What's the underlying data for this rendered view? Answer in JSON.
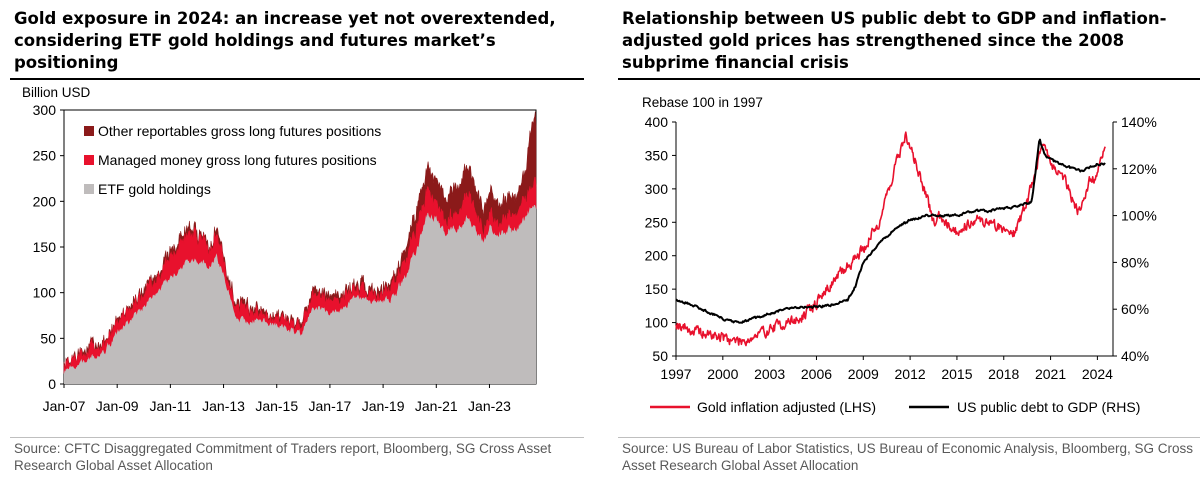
{
  "left": {
    "title_lines": [
      "Gold exposure in 2024: an increase yet not overextended,",
      "considering ETF gold holdings and futures market’s",
      "positioning"
    ],
    "source_lines": [
      "Source: CFTC Disaggregated Commitment of Traders report, Bloomberg, SG Cross Asset",
      "Research Global Asset Allocation"
    ]
  },
  "right": {
    "title_lines": [
      "Relationship between US public debt to GDP and inflation-",
      "adjusted gold prices has strengthened since the 2008",
      "subprime financial crisis"
    ],
    "source_lines": [
      "Source: US Bureau of Labor Statistics, US Bureau of Economic Analysis, Bloomberg, SG Cross",
      "Asset Research Global Asset Allocation"
    ]
  },
  "chart_data": [
    {
      "type": "area",
      "stacked": true,
      "ylabel": "Billion USD",
      "ylim": [
        0,
        300
      ],
      "yticks": [
        0,
        50,
        100,
        150,
        200,
        250,
        300
      ],
      "xlim": [
        2007.0,
        2024.75
      ],
      "xtick_labels": [
        "Jan-07",
        "Jan-09",
        "Jan-11",
        "Jan-13",
        "Jan-15",
        "Jan-17",
        "Jan-19",
        "Jan-21",
        "Jan-23"
      ],
      "xtick_years": [
        2007,
        2009,
        2011,
        2013,
        2015,
        2017,
        2019,
        2021,
        2023
      ],
      "grid": false,
      "legend_position": "top-left",
      "colors": {
        "etf": "#bfbcbc",
        "managed": "#e8112d",
        "other": "#8b1a1a"
      },
      "x": [
        2007.0,
        2007.5,
        2008.0,
        2008.5,
        2009.0,
        2009.5,
        2010.0,
        2010.5,
        2011.0,
        2011.5,
        2011.75,
        2012.0,
        2012.5,
        2012.75,
        2013.0,
        2013.25,
        2013.5,
        2014.0,
        2014.5,
        2015.0,
        2015.5,
        2015.9,
        2016.3,
        2016.6,
        2017.0,
        2017.5,
        2018.0,
        2018.5,
        2019.0,
        2019.5,
        2020.0,
        2020.3,
        2020.6,
        2021.0,
        2021.3,
        2021.6,
        2022.0,
        2022.25,
        2022.5,
        2022.8,
        2023.0,
        2023.5,
        2024.0,
        2024.3,
        2024.6
      ],
      "series": [
        {
          "name": "ETF gold holdings",
          "values": [
            13,
            20,
            28,
            35,
            55,
            70,
            85,
            100,
            115,
            130,
            135,
            135,
            130,
            140,
            120,
            95,
            70,
            70,
            70,
            65,
            60,
            55,
            80,
            85,
            75,
            85,
            95,
            90,
            90,
            100,
            130,
            150,
            185,
            180,
            165,
            170,
            175,
            185,
            165,
            155,
            170,
            165,
            170,
            180,
            195
          ]
        },
        {
          "name": "Managed money gross long futures positions",
          "values": [
            5,
            8,
            10,
            8,
            10,
            12,
            15,
            18,
            22,
            28,
            30,
            25,
            20,
            25,
            15,
            12,
            10,
            12,
            10,
            8,
            8,
            10,
            15,
            15,
            12,
            12,
            10,
            8,
            10,
            15,
            20,
            25,
            25,
            20,
            15,
            15,
            20,
            30,
            15,
            10,
            15,
            15,
            15,
            20,
            25
          ]
        },
        {
          "name": "Other reportables gross long futures positions",
          "values": [
            2,
            3,
            4,
            3,
            3,
            4,
            5,
            5,
            6,
            7,
            7,
            6,
            5,
            6,
            5,
            4,
            4,
            4,
            4,
            3,
            3,
            4,
            6,
            6,
            5,
            5,
            5,
            5,
            5,
            7,
            15,
            20,
            25,
            25,
            25,
            30,
            30,
            30,
            25,
            25,
            25,
            20,
            20,
            25,
            70
          ]
        }
      ]
    },
    {
      "type": "line",
      "ylabel": "Rebase 100 in 1997",
      "ylim": [
        50,
        400
      ],
      "yticks": [
        50,
        100,
        150,
        200,
        250,
        300,
        350,
        400
      ],
      "y2lim": [
        40,
        140
      ],
      "y2ticks": [
        40,
        60,
        80,
        100,
        120,
        140
      ],
      "y2tick_labels": [
        "40%",
        "60%",
        "80%",
        "100%",
        "120%",
        "140%"
      ],
      "xlim": [
        1997,
        2025
      ],
      "xticks": [
        1997,
        2000,
        2003,
        2006,
        2009,
        2012,
        2015,
        2018,
        2021,
        2024
      ],
      "grid": false,
      "legend_position": "bottom",
      "series": [
        {
          "name": "Gold inflation adjusted (LHS)",
          "axis": "left",
          "color": "#e8112d",
          "x": [
            1997,
            1998,
            1999,
            2000,
            2001,
            2002,
            2003,
            2004,
            2005,
            2006,
            2007,
            2008,
            2009,
            2010,
            2011,
            2011.7,
            2012.5,
            2013.5,
            2014,
            2015,
            2016,
            2017,
            2018,
            2018.7,
            2019.5,
            2020.5,
            2021,
            2022,
            2022.8,
            2023.5,
            2024,
            2024.5
          ],
          "y": [
            100,
            88,
            82,
            78,
            72,
            78,
            90,
            100,
            105,
            130,
            160,
            185,
            210,
            250,
            330,
            380,
            330,
            250,
            260,
            235,
            255,
            250,
            240,
            235,
            280,
            370,
            340,
            310,
            265,
            310,
            320,
            365
          ]
        },
        {
          "name": "US public debt to GDP (RHS)",
          "axis": "right",
          "color": "#000000",
          "x": [
            1997,
            1998,
            1999,
            2000,
            2001,
            2002,
            2003,
            2004,
            2005,
            2006,
            2007,
            2008,
            2008.5,
            2009,
            2010,
            2011,
            2012,
            2013,
            2014,
            2015,
            2016,
            2017,
            2018,
            2019,
            2019.8,
            2020.3,
            2020.6,
            2021,
            2022,
            2023,
            2024,
            2024.5
          ],
          "y": [
            64,
            62,
            59,
            56,
            54,
            56,
            58,
            60,
            61,
            61,
            62,
            64,
            70,
            80,
            88,
            94,
            98,
            100,
            100,
            100,
            102,
            102,
            103,
            104,
            106,
            133,
            126,
            124,
            121,
            119,
            122,
            122
          ]
        }
      ]
    }
  ]
}
